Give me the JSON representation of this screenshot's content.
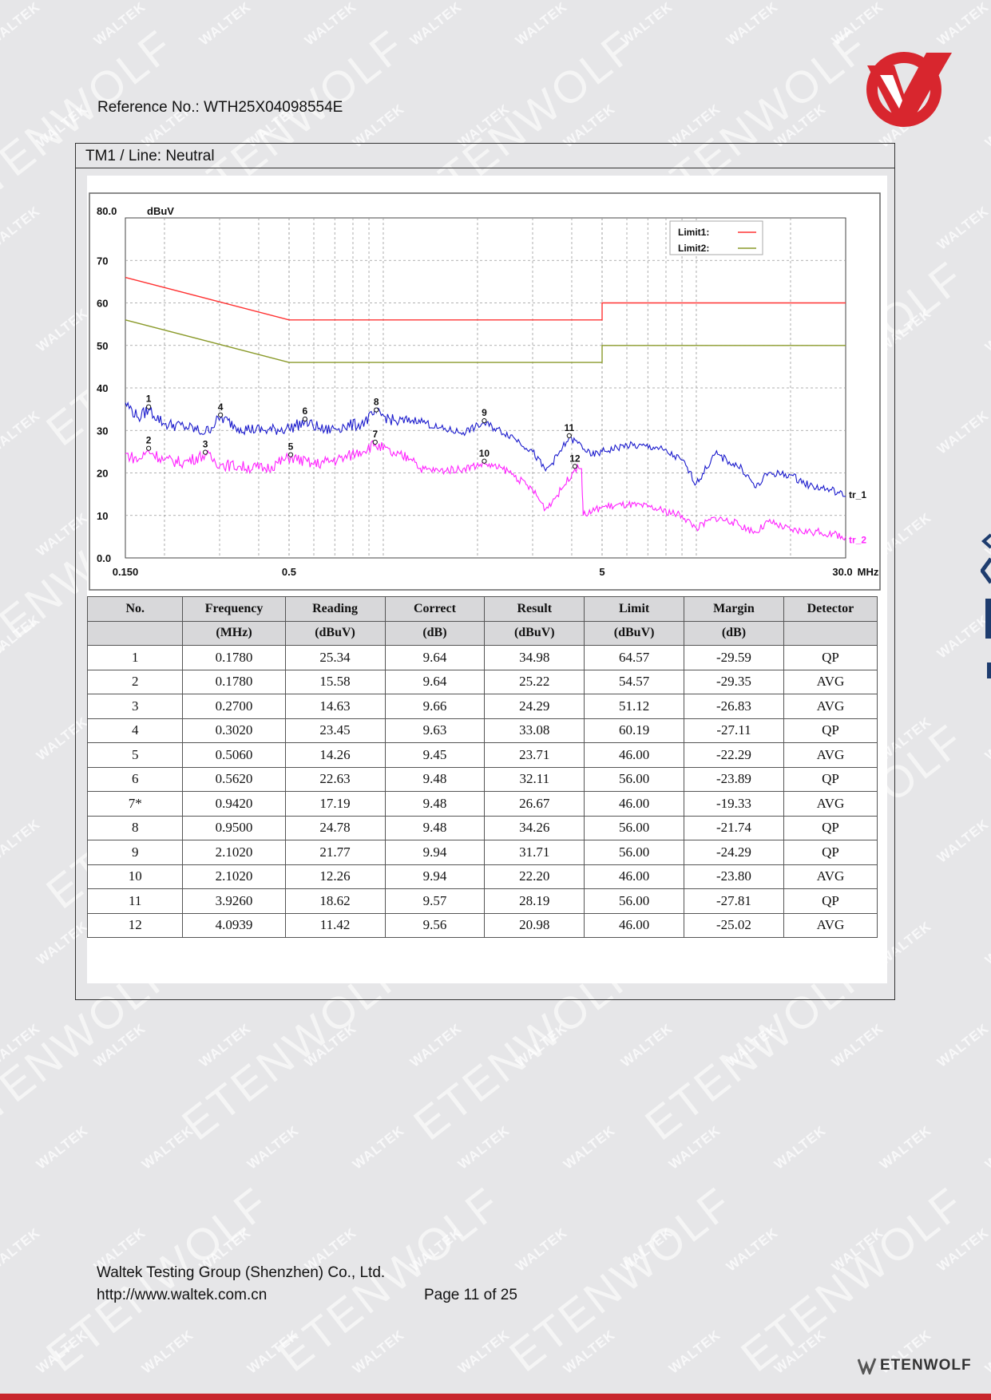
{
  "header": {
    "reference": "Reference No.: WTH25X04098554E"
  },
  "watermark": {
    "small": "WALTEK",
    "big": "ETENWOLF"
  },
  "section": {
    "caption": "TM1 / Line: Neutral"
  },
  "chart_data": {
    "type": "line",
    "xscale": "log",
    "xlim": [
      0.15,
      30.0
    ],
    "ylim": [
      0.0,
      80.0
    ],
    "yunit": "dBuV",
    "xunit": "MHz",
    "x_tick_labels": [
      [
        "0.150",
        0.15
      ],
      [
        "0.5",
        0.5
      ],
      [
        "5",
        5
      ],
      [
        "30.0",
        30.0
      ]
    ],
    "y_tick_labels": [
      [
        "80.0",
        80
      ],
      [
        "70",
        70
      ],
      [
        "60",
        60
      ],
      [
        "50",
        50
      ],
      [
        "40",
        40
      ],
      [
        "30",
        30
      ],
      [
        "20",
        20
      ],
      [
        "10",
        10
      ],
      [
        "0.0",
        0
      ]
    ],
    "grid": true,
    "legend_position": "top-right",
    "legend": [
      {
        "label": "Limit1:",
        "color": "#ff3333"
      },
      {
        "label": "Limit2:",
        "color": "#8a9a2a"
      }
    ],
    "series": [
      {
        "name": "Limit1:",
        "color": "#ff3333",
        "points": [
          [
            0.15,
            66.0
          ],
          [
            0.5,
            56.0
          ],
          [
            5.0,
            56.0
          ],
          [
            5.0,
            60.0
          ],
          [
            30.0,
            60.0
          ]
        ]
      },
      {
        "name": "Limit2:",
        "color": "#8a9a2a",
        "points": [
          [
            0.15,
            56.0
          ],
          [
            0.5,
            46.0
          ],
          [
            5.0,
            46.0
          ],
          [
            5.0,
            50.0
          ],
          [
            30.0,
            50.0
          ]
        ]
      },
      {
        "name": "tr_1",
        "color": "#1a1acc",
        "points": [
          [
            0.15,
            36.5
          ],
          [
            0.165,
            33.0
          ],
          [
            0.178,
            34.9
          ],
          [
            0.2,
            31.5
          ],
          [
            0.23,
            31.0
          ],
          [
            0.27,
            29.5
          ],
          [
            0.302,
            33.0
          ],
          [
            0.35,
            30.5
          ],
          [
            0.42,
            30.0
          ],
          [
            0.5,
            30.5
          ],
          [
            0.562,
            32.0
          ],
          [
            0.65,
            30.0
          ],
          [
            0.75,
            31.0
          ],
          [
            0.85,
            31.5
          ],
          [
            0.95,
            34.2
          ],
          [
            1.1,
            32.0
          ],
          [
            1.3,
            32.5
          ],
          [
            1.5,
            30.5
          ],
          [
            1.8,
            29.5
          ],
          [
            2.1,
            31.7
          ],
          [
            2.6,
            28.5
          ],
          [
            3.0,
            25.0
          ],
          [
            3.3,
            20.5
          ],
          [
            3.6,
            24.0
          ],
          [
            3.92,
            28.2
          ],
          [
            4.3,
            26.5
          ],
          [
            4.6,
            24.0
          ],
          [
            5.0,
            25.0
          ],
          [
            6.0,
            26.5
          ],
          [
            7.5,
            26.0
          ],
          [
            9.0,
            23.0
          ],
          [
            10.0,
            17.5
          ],
          [
            11.5,
            24.5
          ],
          [
            12.5,
            23.0
          ],
          [
            14.0,
            21.0
          ],
          [
            15.5,
            16.5
          ],
          [
            17.0,
            20.0
          ],
          [
            20.0,
            19.5
          ],
          [
            23.0,
            17.0
          ],
          [
            27.0,
            16.0
          ],
          [
            30.0,
            14.5
          ]
        ]
      },
      {
        "name": "tr_2",
        "color": "#ff22ff",
        "points": [
          [
            0.15,
            24.5
          ],
          [
            0.165,
            23.0
          ],
          [
            0.178,
            25.2
          ],
          [
            0.2,
            23.0
          ],
          [
            0.23,
            22.5
          ],
          [
            0.27,
            24.3
          ],
          [
            0.302,
            22.0
          ],
          [
            0.35,
            21.5
          ],
          [
            0.42,
            21.0
          ],
          [
            0.506,
            23.7
          ],
          [
            0.6,
            22.0
          ],
          [
            0.75,
            23.5
          ],
          [
            0.942,
            26.7
          ],
          [
            1.1,
            24.0
          ],
          [
            1.25,
            23.5
          ],
          [
            1.3,
            21.0
          ],
          [
            1.5,
            20.5
          ],
          [
            1.8,
            21.0
          ],
          [
            2.1,
            22.2
          ],
          [
            2.5,
            20.5
          ],
          [
            3.0,
            16.0
          ],
          [
            3.3,
            11.5
          ],
          [
            3.7,
            16.0
          ],
          [
            4.09,
            21.0
          ],
          [
            4.3,
            21.0
          ],
          [
            4.35,
            10.0
          ],
          [
            5.0,
            12.0
          ],
          [
            6.0,
            12.5
          ],
          [
            7.0,
            12.0
          ],
          [
            9.0,
            10.0
          ],
          [
            10.0,
            7.0
          ],
          [
            11.5,
            9.5
          ],
          [
            13.0,
            8.5
          ],
          [
            15.5,
            6.0
          ],
          [
            17.0,
            8.5
          ],
          [
            20.0,
            6.5
          ],
          [
            25.0,
            6.0
          ],
          [
            30.0,
            5.0
          ]
        ]
      }
    ],
    "markers": [
      {
        "label": "1",
        "x": 0.178,
        "y": 34.98
      },
      {
        "label": "2",
        "x": 0.178,
        "y": 25.22
      },
      {
        "label": "3",
        "x": 0.27,
        "y": 24.29
      },
      {
        "label": "4",
        "x": 0.302,
        "y": 33.08
      },
      {
        "label": "5",
        "x": 0.506,
        "y": 23.71
      },
      {
        "label": "6",
        "x": 0.562,
        "y": 32.11
      },
      {
        "label": "7",
        "x": 0.942,
        "y": 26.67
      },
      {
        "label": "8",
        "x": 0.95,
        "y": 34.26
      },
      {
        "label": "9",
        "x": 2.102,
        "y": 31.71
      },
      {
        "label": "10",
        "x": 2.102,
        "y": 22.2
      },
      {
        "label": "11",
        "x": 3.926,
        "y": 28.19
      },
      {
        "label": "12",
        "x": 4.0939,
        "y": 20.98
      }
    ]
  },
  "results_table": {
    "headers": [
      "No.",
      "Frequency",
      "Reading",
      "Correct",
      "Result",
      "Limit",
      "Margin",
      "Detector"
    ],
    "units": [
      "",
      "(MHz)",
      "(dBuV)",
      "(dB)",
      "(dBuV)",
      "(dBuV)",
      "(dB)",
      ""
    ],
    "rows": [
      [
        "1",
        "0.1780",
        "25.34",
        "9.64",
        "34.98",
        "64.57",
        "-29.59",
        "QP"
      ],
      [
        "2",
        "0.1780",
        "15.58",
        "9.64",
        "25.22",
        "54.57",
        "-29.35",
        "AVG"
      ],
      [
        "3",
        "0.2700",
        "14.63",
        "9.66",
        "24.29",
        "51.12",
        "-26.83",
        "AVG"
      ],
      [
        "4",
        "0.3020",
        "23.45",
        "9.63",
        "33.08",
        "60.19",
        "-27.11",
        "QP"
      ],
      [
        "5",
        "0.5060",
        "14.26",
        "9.45",
        "23.71",
        "46.00",
        "-22.29",
        "AVG"
      ],
      [
        "6",
        "0.5620",
        "22.63",
        "9.48",
        "32.11",
        "56.00",
        "-23.89",
        "QP"
      ],
      [
        "7*",
        "0.9420",
        "17.19",
        "9.48",
        "26.67",
        "46.00",
        "-19.33",
        "AVG"
      ],
      [
        "8",
        "0.9500",
        "24.78",
        "9.48",
        "34.26",
        "56.00",
        "-21.74",
        "QP"
      ],
      [
        "9",
        "2.1020",
        "21.77",
        "9.94",
        "31.71",
        "56.00",
        "-24.29",
        "QP"
      ],
      [
        "10",
        "2.1020",
        "12.26",
        "9.94",
        "22.20",
        "46.00",
        "-23.80",
        "AVG"
      ],
      [
        "11",
        "3.9260",
        "18.62",
        "9.57",
        "28.19",
        "56.00",
        "-27.81",
        "QP"
      ],
      [
        "12",
        "4.0939",
        "11.42",
        "9.56",
        "20.98",
        "46.00",
        "-25.02",
        "AVG"
      ]
    ]
  },
  "footer": {
    "company": "Waltek Testing Group (Shenzhen) Co., Ltd.",
    "url": "http://www.waltek.com.cn",
    "page": "Page 11 of 25",
    "brand": "ETENWOLF"
  },
  "colors": {
    "accent": "#c8262c",
    "background": "#e6e6e8"
  }
}
